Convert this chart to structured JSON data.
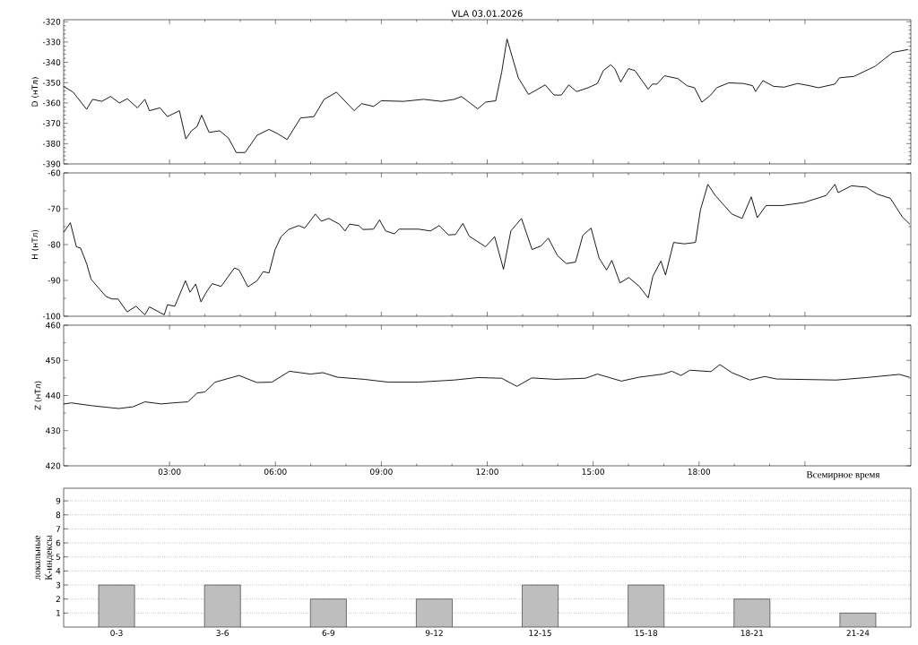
{
  "chart_data": [
    {
      "type": "line",
      "title": "VLA 03.01.2026",
      "ylabel": "D (нТл)",
      "color": "#000000",
      "xlim": [
        0,
        24
      ],
      "ylim": [
        -390,
        -319
      ],
      "xticks": [
        3,
        6,
        9,
        12,
        15,
        18,
        21
      ],
      "yticks": [
        -390,
        -380,
        -370,
        -360,
        -350,
        -340,
        -330,
        -320
      ],
      "tick_labels": "y",
      "x": [
        0,
        0.27,
        0.65,
        0.82,
        1.08,
        1.33,
        1.58,
        1.8,
        2.09,
        2.3,
        2.43,
        2.73,
        2.94,
        3.28,
        3.46,
        3.62,
        3.78,
        3.91,
        4.12,
        4.42,
        4.67,
        4.89,
        5.14,
        5.48,
        5.82,
        6.07,
        6.33,
        6.71,
        7.09,
        7.38,
        7.73,
        8.23,
        8.44,
        8.78,
        9.0,
        9.63,
        10.2,
        10.7,
        11.07,
        11.27,
        11.73,
        11.95,
        12.24,
        12.41,
        12.56,
        12.88,
        13.17,
        13.64,
        13.89,
        14.1,
        14.31,
        14.53,
        14.86,
        15.12,
        15.29,
        15.5,
        15.62,
        15.78,
        16.0,
        16.18,
        16.56,
        16.68,
        16.81,
        17.02,
        17.4,
        17.66,
        17.87,
        18.08,
        18.33,
        18.5,
        18.84,
        19.26,
        19.52,
        19.6,
        19.81,
        20.11,
        20.41,
        20.79,
        21.13,
        21.38,
        21.85,
        21.98,
        22.39,
        22.99,
        23.49,
        23.92
      ],
      "values": [
        -351.8,
        -354.7,
        -363.1,
        -358.2,
        -359.2,
        -356.8,
        -360.0,
        -357.9,
        -362.4,
        -358.2,
        -363.8,
        -362.4,
        -366.7,
        -363.8,
        -377.7,
        -373.7,
        -371.6,
        -366.0,
        -374.5,
        -373.7,
        -377.3,
        -384.4,
        -384.4,
        -375.9,
        -373.0,
        -375.2,
        -378.0,
        -367.4,
        -366.7,
        -358.2,
        -354.7,
        -363.8,
        -360.3,
        -361.7,
        -358.9,
        -359.2,
        -358.2,
        -359.2,
        -358.2,
        -356.8,
        -362.9,
        -359.6,
        -358.9,
        -344.8,
        -328.5,
        -347.6,
        -355.8,
        -351.1,
        -356.1,
        -356.1,
        -351.1,
        -354.4,
        -352.5,
        -350.4,
        -344.0,
        -341.2,
        -343.3,
        -349.7,
        -343.1,
        -344.0,
        -353.2,
        -350.7,
        -350.7,
        -346.6,
        -348.0,
        -351.5,
        -352.5,
        -359.6,
        -356.1,
        -352.5,
        -350.1,
        -350.4,
        -351.5,
        -354.4,
        -349.0,
        -351.8,
        -352.2,
        -350.4,
        -351.5,
        -352.5,
        -350.7,
        -347.6,
        -346.9,
        -341.9,
        -335.1,
        -333.7
      ]
    },
    {
      "type": "line",
      "ylabel": "H (нТл)",
      "color": "#000000",
      "xlim": [
        0,
        24
      ],
      "ylim": [
        -100,
        -60
      ],
      "xticks": [
        3,
        6,
        9,
        12,
        15,
        18,
        21
      ],
      "yticks": [
        -100,
        -90,
        -80,
        -70,
        -60
      ],
      "tick_labels": "y",
      "x": [
        0,
        0.19,
        0.36,
        0.48,
        0.65,
        0.78,
        0.99,
        1.2,
        1.37,
        1.54,
        1.8,
        2.05,
        2.3,
        2.43,
        2.85,
        2.94,
        3.15,
        3.45,
        3.58,
        3.74,
        3.89,
        4.04,
        4.21,
        4.46,
        4.84,
        4.97,
        5.22,
        5.48,
        5.65,
        5.82,
        5.99,
        6.16,
        6.37,
        6.66,
        6.83,
        7.13,
        7.3,
        7.51,
        7.81,
        7.97,
        8.1,
        8.36,
        8.48,
        8.78,
        8.95,
        9.12,
        9.37,
        9.5,
        10.05,
        10.39,
        10.64,
        10.9,
        11.1,
        11.31,
        11.49,
        11.7,
        11.95,
        12.21,
        12.46,
        12.67,
        12.97,
        13.27,
        13.52,
        13.73,
        13.99,
        14.24,
        14.5,
        14.71,
        14.94,
        15.17,
        15.38,
        15.53,
        15.76,
        16.01,
        16.31,
        16.56,
        16.69,
        16.92,
        17.05,
        17.28,
        17.58,
        17.9,
        18.04,
        18.25,
        18.46,
        18.93,
        19.22,
        19.48,
        19.65,
        19.9,
        20.37,
        20.96,
        21.6,
        21.85,
        21.94,
        22.32,
        22.74,
        23.04,
        23.42,
        23.76,
        23.97
      ],
      "values": [
        -76.6,
        -73.9,
        -80.6,
        -81.0,
        -85.3,
        -89.7,
        -92.1,
        -94.5,
        -95.2,
        -95.2,
        -98.8,
        -97.2,
        -99.6,
        -97.4,
        -99.6,
        -96.8,
        -97.2,
        -90.1,
        -93.3,
        -91.0,
        -96.0,
        -93.3,
        -90.9,
        -91.7,
        -86.5,
        -87.1,
        -91.8,
        -90.1,
        -87.6,
        -87.9,
        -81.4,
        -77.8,
        -75.8,
        -74.7,
        -75.4,
        -71.5,
        -73.5,
        -72.7,
        -74.3,
        -76.2,
        -74.3,
        -74.7,
        -75.8,
        -75.7,
        -73.1,
        -76.2,
        -77.0,
        -75.7,
        -75.7,
        -76.2,
        -74.7,
        -77.3,
        -77.2,
        -74.1,
        -77.7,
        -79.0,
        -80.6,
        -77.8,
        -86.9,
        -76.2,
        -72.7,
        -81.4,
        -80.4,
        -78.2,
        -83.1,
        -85.3,
        -84.9,
        -77.4,
        -75.4,
        -83.8,
        -87.1,
        -84.4,
        -90.7,
        -89.2,
        -91.7,
        -94.9,
        -88.9,
        -84.6,
        -88.5,
        -79.4,
        -79.8,
        -79.4,
        -70.3,
        -63.2,
        -66.3,
        -71.5,
        -72.7,
        -66.7,
        -72.5,
        -69.1,
        -69.1,
        -68.3,
        -66.3,
        -63.2,
        -65.5,
        -63.6,
        -64.0,
        -65.9,
        -67.1,
        -72.3,
        -74.3
      ]
    },
    {
      "type": "line",
      "ylabel": "Z (нТл)",
      "xlabel": "Всемирное время",
      "color": "#000000",
      "xlim": [
        0,
        24
      ],
      "ylim": [
        420,
        460
      ],
      "xticks": [
        {
          "value": 3,
          "label": "03:00"
        },
        {
          "value": 6,
          "label": "06:00"
        },
        {
          "value": 9,
          "label": "09:00"
        },
        {
          "value": 12,
          "label": "12:00"
        },
        {
          "value": 15,
          "label": "15:00"
        },
        {
          "value": 18,
          "label": "18:00"
        },
        {
          "value": 21,
          "label": null
        }
      ],
      "yticks": [
        420,
        430,
        440,
        450,
        460
      ],
      "x": [
        0,
        0.22,
        0.8,
        1.56,
        1.97,
        2.3,
        2.77,
        3.1,
        3.52,
        3.78,
        4.0,
        4.29,
        4.97,
        5.47,
        5.9,
        6.4,
        6.99,
        7.34,
        7.76,
        8.52,
        9.2,
        10.04,
        11.06,
        11.74,
        12.41,
        12.84,
        13.26,
        13.94,
        14.78,
        15.12,
        15.8,
        16.3,
        16.98,
        17.23,
        17.49,
        17.74,
        18.34,
        18.59,
        18.93,
        19.44,
        19.86,
        20.2,
        21.89,
        22.74,
        23.67,
        23.96
      ],
      "values": [
        437.6,
        437.9,
        437.1,
        436.3,
        436.8,
        438.2,
        437.6,
        437.9,
        438.2,
        440.7,
        441.0,
        443.8,
        445.7,
        443.7,
        443.8,
        446.9,
        446.1,
        446.5,
        445.2,
        444.6,
        443.8,
        443.8,
        444.4,
        445.1,
        444.9,
        442.6,
        445.0,
        444.6,
        444.9,
        446.1,
        444.1,
        445.2,
        446.1,
        446.9,
        445.7,
        447.2,
        446.8,
        448.8,
        446.5,
        444.4,
        445.4,
        444.7,
        444.4,
        445.1,
        446.0,
        445.2
      ]
    },
    {
      "type": "bar",
      "ylabel": "локальные К-индексы",
      "color": "#bebebe",
      "categories": [
        "0-3",
        "3-6",
        "6-9",
        "9-12",
        "12-15",
        "15-18",
        "18-21",
        "21-24"
      ],
      "values": [
        3,
        3,
        2,
        2,
        3,
        3,
        2,
        1
      ],
      "ylim": [
        0,
        9.9
      ],
      "yticks": [
        1,
        2,
        3,
        4,
        5,
        6,
        7,
        8,
        9
      ],
      "grid": "y"
    }
  ]
}
